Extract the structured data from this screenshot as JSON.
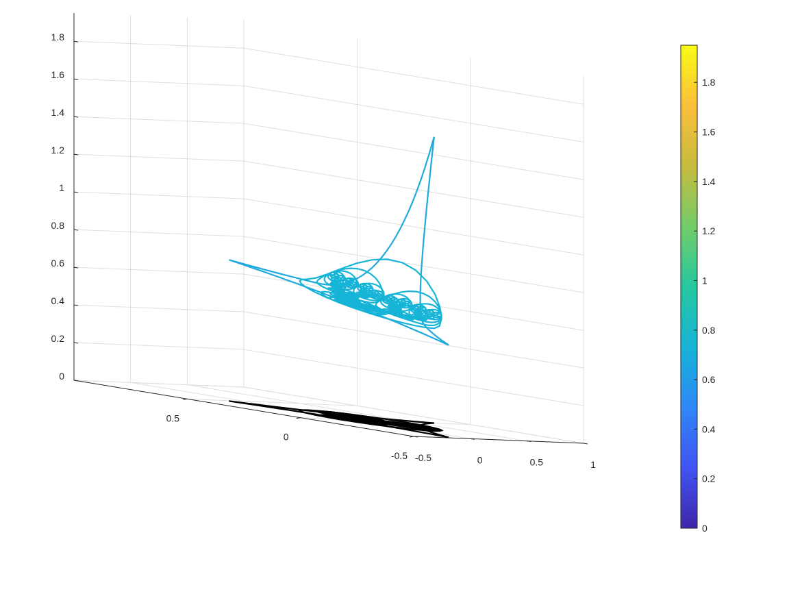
{
  "chart_data": {
    "type": "surface3d",
    "title": "",
    "xlabel": "",
    "ylabel": "",
    "zlabel": "",
    "x_ticks": [
      "-0.5",
      "0",
      "0.5",
      "1"
    ],
    "y_ticks": [
      "-0.5",
      "0",
      "0.5"
    ],
    "z_ticks": [
      "0",
      "0.2",
      "0.4",
      "0.6",
      "0.8",
      "1",
      "1.2",
      "1.4",
      "1.6",
      "1.8"
    ],
    "xlim": [
      -0.5,
      1
    ],
    "ylim": [
      -0.5,
      1
    ],
    "zlim": [
      0,
      1.95
    ],
    "grid": true,
    "description_free_series": {
      "tips": [
        {
          "x": 1.0,
          "y": 0.0,
          "z": 1.95
        },
        {
          "x": -0.5,
          "y": 0.866,
          "z": 0.7
        },
        {
          "x": -0.5,
          "y": -0.866,
          "z": 0.35
        }
      ],
      "projection_z": 0
    },
    "colorbar": {
      "ticks": [
        "0",
        "0.2",
        "0.4",
        "0.6",
        "0.8",
        "1",
        "1.2",
        "1.4",
        "1.6",
        "1.8"
      ],
      "range": [
        0,
        1.95
      ],
      "colormap": [
        "#3e26a8",
        "#4154f3",
        "#2e87f7",
        "#16b4d6",
        "#27c7a0",
        "#73cd68",
        "#c7bb3f",
        "#fbbf3b",
        "#f9fb15"
      ]
    }
  }
}
